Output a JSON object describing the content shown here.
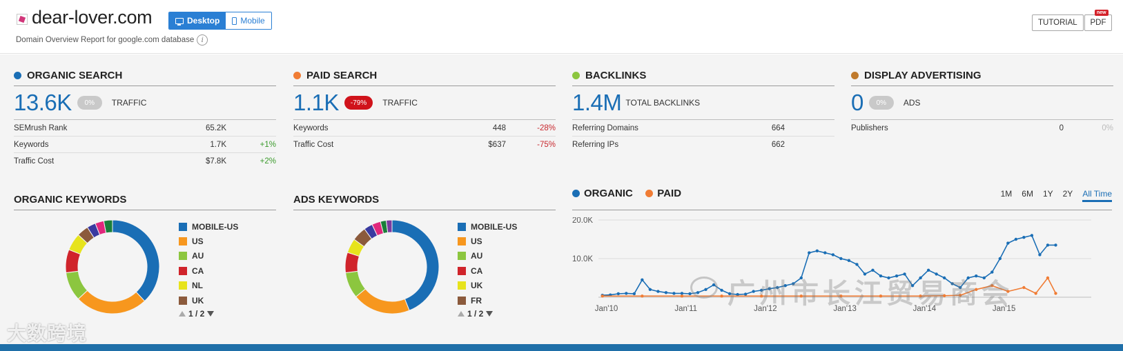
{
  "header": {
    "domain": "dear-lover.com",
    "device_toggle": {
      "desktop": "Desktop",
      "mobile": "Mobile",
      "active": "Desktop"
    },
    "subtitle": "Domain Overview Report for google.com database",
    "info_icon": "i",
    "tutorial": "TUTORIAL",
    "pdf": "PDF",
    "pdf_badge": "new"
  },
  "summary": [
    {
      "id": "organic-search",
      "title": "ORGANIC SEARCH",
      "color": "#1a6eb5",
      "big_value": "13.6K",
      "badge": "0%",
      "badge_style": "grey",
      "big_label": "TRAFFIC",
      "metrics": [
        {
          "name": "SEMrush Rank",
          "value": "65.2K",
          "change": "",
          "change_style": ""
        },
        {
          "name": "Keywords",
          "value": "1.7K",
          "change": "+1%",
          "change_style": "green"
        },
        {
          "name": "Traffic Cost",
          "value": "$7.8K",
          "change": "+2%",
          "change_style": "green"
        }
      ]
    },
    {
      "id": "paid-search",
      "title": "PAID SEARCH",
      "color": "#f07c34",
      "big_value": "1.1K",
      "badge": "-79%",
      "badge_style": "red",
      "big_label": "TRAFFIC",
      "metrics": [
        {
          "name": "Keywords",
          "value": "448",
          "change": "-28%",
          "change_style": "red"
        },
        {
          "name": "Traffic Cost",
          "value": "$637",
          "change": "-75%",
          "change_style": "red"
        }
      ]
    },
    {
      "id": "backlinks",
      "title": "BACKLINKS",
      "color": "#8cc63f",
      "big_value": "1.4M",
      "badge": "",
      "badge_style": "",
      "big_label": "TOTAL BACKLINKS",
      "metrics": [
        {
          "name": "Referring Domains",
          "value": "664",
          "change": "",
          "change_style": ""
        },
        {
          "name": "Referring IPs",
          "value": "662",
          "change": "",
          "change_style": ""
        }
      ]
    },
    {
      "id": "display-advertising",
      "title": "DISPLAY ADVERTISING",
      "color": "#c07a2c",
      "big_value": "0",
      "badge": "0%",
      "badge_style": "grey",
      "big_label": "ADS",
      "metrics": [
        {
          "name": "Publishers",
          "value": "0",
          "change": "0%",
          "change_style": "grey"
        }
      ]
    }
  ],
  "organic_keywords": {
    "title": "ORGANIC KEYWORDS",
    "legend": [
      "MOBILE-US",
      "US",
      "AU",
      "CA",
      "NL",
      "UK"
    ],
    "legend_colors": [
      "#1a6eb5",
      "#f7971e",
      "#8cc63f",
      "#d0242b",
      "#e7e31c",
      "#8b5a3c"
    ],
    "pager": "1 / 2"
  },
  "ads_keywords": {
    "title": "ADS KEYWORDS",
    "legend": [
      "MOBILE-US",
      "US",
      "AU",
      "CA",
      "UK",
      "FR"
    ],
    "legend_colors": [
      "#1a6eb5",
      "#f7971e",
      "#8cc63f",
      "#d0242b",
      "#e7e31c",
      "#8b5a3c"
    ],
    "pager": "1 / 2"
  },
  "traffic_chart": {
    "series_organic": "ORGANIC",
    "series_paid": "PAID",
    "organic_color": "#1a6eb5",
    "paid_color": "#f07c34",
    "ranges": [
      "1M",
      "6M",
      "1Y",
      "2Y",
      "All Time"
    ],
    "active_range": "All Time",
    "y_ticks": [
      "20.0K",
      "10.0K"
    ]
  },
  "watermarks": {
    "left": "大数跨境",
    "right": "广州市长江贸易商会"
  },
  "chart_data": [
    {
      "type": "pie",
      "title": "ORGANIC KEYWORDS",
      "categories": [
        "MOBILE-US",
        "US",
        "AU",
        "CA",
        "NL",
        "UK",
        "other-1",
        "other-2",
        "other-3"
      ],
      "values": [
        38,
        25,
        10,
        8,
        6,
        4,
        3,
        3,
        3
      ],
      "colors": [
        "#1a6eb5",
        "#f7971e",
        "#8cc63f",
        "#d0242b",
        "#e7e31c",
        "#8b5a3c",
        "#3a3aa0",
        "#e0287c",
        "#1a7f3a"
      ],
      "legend_position": "right"
    },
    {
      "type": "pie",
      "title": "ADS KEYWORDS",
      "categories": [
        "MOBILE-US",
        "US",
        "AU",
        "CA",
        "UK",
        "FR",
        "other-1",
        "other-2",
        "other-3",
        "other-4"
      ],
      "values": [
        44,
        20,
        9,
        7,
        5,
        5,
        3,
        3,
        2,
        2
      ],
      "colors": [
        "#1a6eb5",
        "#f7971e",
        "#8cc63f",
        "#d0242b",
        "#e7e31c",
        "#8b5a3c",
        "#3a3aa0",
        "#e0287c",
        "#1a7f3a",
        "#7a3aa0"
      ],
      "legend_position": "right"
    },
    {
      "type": "line",
      "x_tick_labels": [
        "Jan'10",
        "Jan'11",
        "Jan'12",
        "Jan'13",
        "Jan'14",
        "Jan'15"
      ],
      "x_range": [
        2009.9,
        2015.75
      ],
      "ylim": [
        0,
        20000
      ],
      "y_ticks": [
        10000,
        20000
      ],
      "grid": true,
      "legend_position": "top-left",
      "series": [
        {
          "name": "ORGANIC",
          "color": "#1a6eb5",
          "x": [
            2009.95,
            2010.05,
            2010.15,
            2010.25,
            2010.35,
            2010.45,
            2010.55,
            2010.65,
            2010.75,
            2010.85,
            2010.95,
            2011.05,
            2011.15,
            2011.25,
            2011.35,
            2011.45,
            2011.55,
            2011.65,
            2011.75,
            2011.85,
            2011.95,
            2012.05,
            2012.15,
            2012.25,
            2012.35,
            2012.45,
            2012.55,
            2012.65,
            2012.75,
            2012.85,
            2012.95,
            2013.05,
            2013.15,
            2013.25,
            2013.35,
            2013.45,
            2013.55,
            2013.65,
            2013.75,
            2013.85,
            2013.95,
            2014.05,
            2014.15,
            2014.25,
            2014.35,
            2014.45,
            2014.55,
            2014.65,
            2014.75,
            2014.85,
            2014.95,
            2015.05,
            2015.15,
            2015.25,
            2015.35,
            2015.45,
            2015.55,
            2015.65
          ],
          "values": [
            500,
            600,
            900,
            1000,
            900,
            4500,
            2000,
            1500,
            1200,
            1000,
            1000,
            900,
            1200,
            2000,
            3200,
            1800,
            900,
            700,
            800,
            1500,
            1800,
            2200,
            2500,
            3000,
            3500,
            5000,
            11500,
            12000,
            11500,
            11000,
            10000,
            9500,
            8500,
            6000,
            7000,
            5500,
            5000,
            5500,
            6000,
            3000,
            5000,
            7000,
            6000,
            5000,
            3500,
            2500,
            5000,
            5500,
            5000,
            6500,
            10000,
            14000,
            15000,
            15500,
            16000,
            11000,
            13500,
            13500
          ],
          "values_note": "approximate"
        },
        {
          "name": "PAID",
          "color": "#f07c34",
          "x": [
            2009.95,
            2010.45,
            2010.95,
            2011.45,
            2011.95,
            2012.45,
            2012.95,
            2013.45,
            2013.95,
            2014.25,
            2014.45,
            2014.65,
            2014.85,
            2015.05,
            2015.25,
            2015.4,
            2015.55,
            2015.65
          ],
          "values": [
            300,
            300,
            300,
            300,
            300,
            300,
            300,
            300,
            300,
            400,
            500,
            2000,
            3000,
            1500,
            2500,
            1000,
            5000,
            1000
          ],
          "values_note": "approximate"
        }
      ]
    }
  ]
}
